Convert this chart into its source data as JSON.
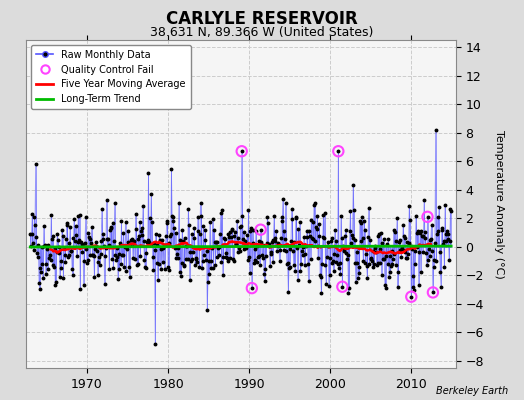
{
  "title": "CARLYLE RESERVOIR",
  "subtitle": "38.631 N, 89.366 W (United States)",
  "ylabel": "Temperature Anomaly (°C)",
  "credit": "Berkeley Earth",
  "ylim": [
    -8.5,
    14.5
  ],
  "yticks": [
    -8,
    -6,
    -4,
    -2,
    0,
    2,
    4,
    6,
    8,
    10,
    12,
    14
  ],
  "xlim": [
    1962.5,
    2015.5
  ],
  "xticks": [
    1970,
    1980,
    1990,
    2000,
    2010
  ],
  "fig_bg_color": "#dcdcdc",
  "plot_bg_color": "#f5f5f5",
  "raw_color": "#5555ff",
  "raw_dot_color": "#000000",
  "qc_color": "#ff44ff",
  "moving_avg_color": "#ff0000",
  "trend_color": "#00bb00",
  "seed": 42,
  "n_years": 52,
  "start_year": 1963
}
